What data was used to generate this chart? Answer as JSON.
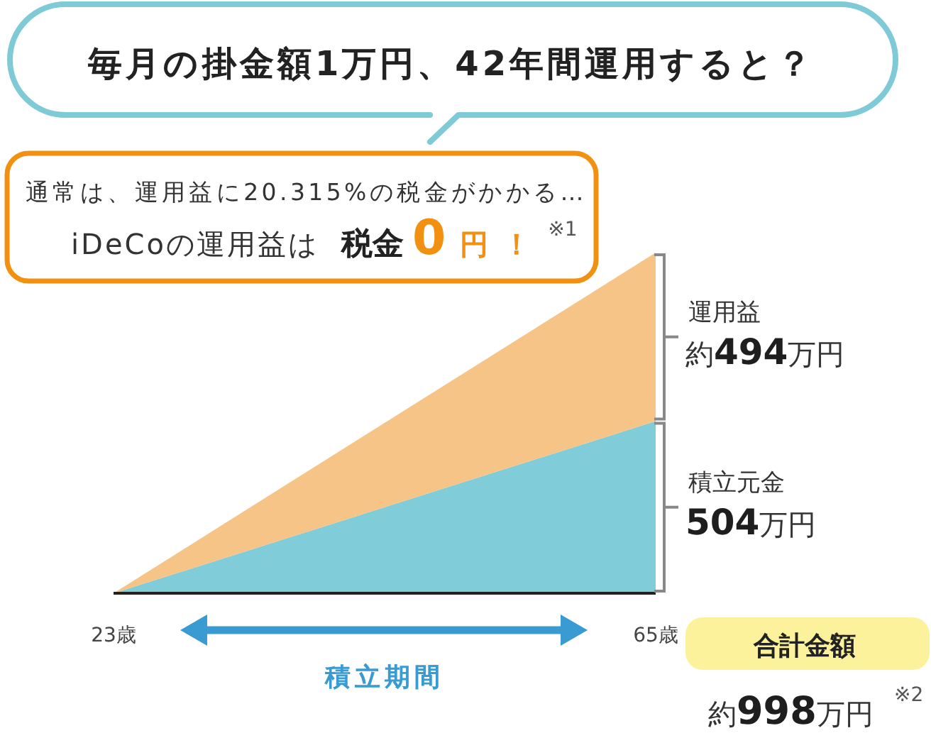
{
  "chart_data": {
    "type": "area",
    "title": "毎月の掛金額1万円、42年間運用すると？",
    "x": [
      23,
      65
    ],
    "xlim": [
      23,
      65
    ],
    "xticks": [
      {
        "value": 23,
        "label": "23歳"
      },
      {
        "value": 65,
        "label": "65歳"
      }
    ],
    "stacked": true,
    "series": [
      {
        "name": "積立元金",
        "color": "#80cdd9",
        "values": [
          0,
          504
        ],
        "value_labels": [
          null,
          "504万円"
        ]
      },
      {
        "name": "運用益",
        "color": "#f5c486",
        "values": [
          0,
          494
        ],
        "value_labels": [
          null,
          "約494万円"
        ]
      }
    ],
    "annotations": [
      "通常は、運用益に20.315%の税金がかかる…",
      "iDeCoの運用益は",
      "税金",
      "0",
      "円！",
      "※1",
      "積立期間",
      "合計金額",
      "約998万円",
      "※2"
    ]
  }
}
